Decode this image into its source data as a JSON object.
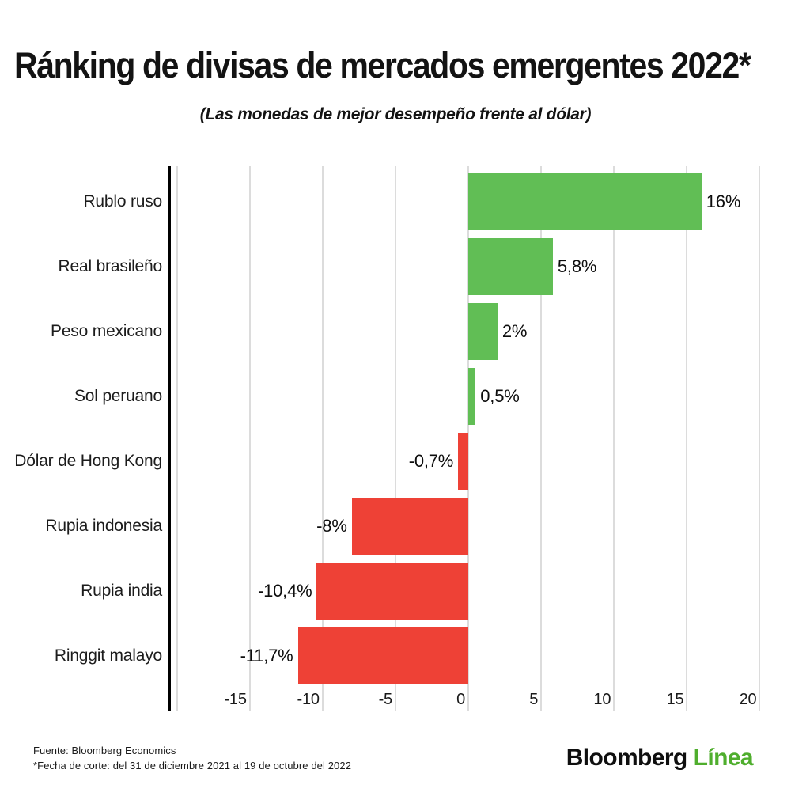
{
  "chart_data": {
    "type": "bar",
    "orientation": "horizontal",
    "title": "Ránking de divisas de mercados emergentes 2022*",
    "subtitle": "(Las monedas de mejor desempeño frente al dólar)",
    "categories": [
      "Rublo ruso",
      "Real brasileño",
      "Peso mexicano",
      "Sol peruano",
      "Dólar de Hong Kong",
      "Rupia indonesia",
      "Rupia india",
      "Ringgit malayo"
    ],
    "values": [
      16,
      5.8,
      2,
      0.5,
      -0.7,
      -8,
      -10.4,
      -11.7
    ],
    "value_labels": [
      "16%",
      "5,8%",
      "2%",
      "0,5%",
      "-0,7%",
      "-8%",
      "-10,4%",
      "-11,7%"
    ],
    "tick_values": [
      -15,
      -10,
      -5,
      0,
      5,
      10,
      15,
      20
    ],
    "tick_labels": [
      "-15",
      "-10",
      "-5",
      "0",
      "5",
      "10",
      "15",
      "20"
    ],
    "grid_values": [
      -20,
      -15,
      -10,
      -5,
      0,
      5,
      10,
      15,
      20
    ],
    "xlim": [
      -20.47,
      20.79
    ],
    "grid": true,
    "legend": false,
    "xlabel": "",
    "ylabel": "",
    "colors": {
      "positive": "#61be55",
      "negative": "#ee4136",
      "gridline": "#dcdcdc",
      "axis_line": "#000000"
    }
  },
  "footer": {
    "source": "Fuente: Bloomberg Economics",
    "note": "*Fecha de corte: del 31 de diciembre 2021 al 19 de octubre del 2022"
  },
  "logo": {
    "text_black": "Bloomberg",
    "text_green": "Línea",
    "green_color": "#4fae2d"
  }
}
